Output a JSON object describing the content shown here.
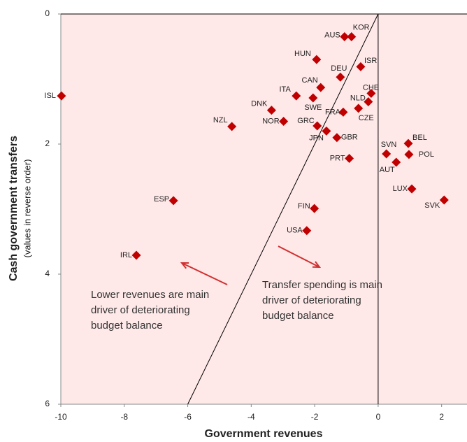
{
  "chart_data": {
    "type": "scatter",
    "x_label": "Government revenues",
    "y_label": "Cash government transfers",
    "y_sublabel": "(values in reverse order)",
    "xlim": [
      -10,
      2.8
    ],
    "ylim": [
      0,
      6
    ],
    "y_reversed": true,
    "xticks": [
      -10,
      -8,
      -6,
      -4,
      -2,
      0,
      2
    ],
    "yticks": [
      0,
      2,
      4,
      6
    ],
    "color": "#c00000",
    "background": "#ffe8e8",
    "labels": [
      "ISL",
      "AUS",
      "KOR",
      "HUN",
      "ISR",
      "DEU",
      "CAN",
      "ITA",
      "CHE",
      "NLD",
      "SWE",
      "DNK",
      "CZE",
      "NOR",
      "FRA",
      "NZL",
      "GRC",
      "JPN",
      "GBR",
      "SVN",
      "BEL",
      "POL",
      "AUT",
      "PRT",
      "LUX",
      "SVK",
      "ESP",
      "FIN",
      "USA",
      "IRL"
    ],
    "x": [
      -9.98,
      -1.06,
      -0.84,
      -1.94,
      -0.55,
      -1.19,
      -1.81,
      -2.58,
      -0.22,
      -0.31,
      -2.05,
      -3.36,
      -0.62,
      -2.98,
      -1.1,
      -4.61,
      -1.92,
      -1.63,
      -1.3,
      0.26,
      0.95,
      0.97,
      0.57,
      -0.91,
      1.06,
      2.08,
      -6.45,
      -2.01,
      -2.25,
      -7.62
    ],
    "y": [
      1.26,
      0.35,
      0.35,
      0.7,
      0.81,
      0.97,
      1.13,
      1.26,
      1.22,
      1.35,
      1.29,
      1.48,
      1.45,
      1.65,
      1.51,
      1.73,
      1.72,
      1.8,
      1.9,
      2.15,
      1.99,
      2.16,
      2.28,
      2.22,
      2.69,
      2.86,
      2.87,
      2.99,
      3.33,
      3.71
    ],
    "annotations": [
      {
        "lines": [
          "Lower revenues  are main",
          "driver of deteriorating",
          "budget balance"
        ]
      },
      {
        "lines": [
          "Transfer spending is main",
          "driver of deteriorating",
          "budget balance"
        ]
      }
    ]
  }
}
